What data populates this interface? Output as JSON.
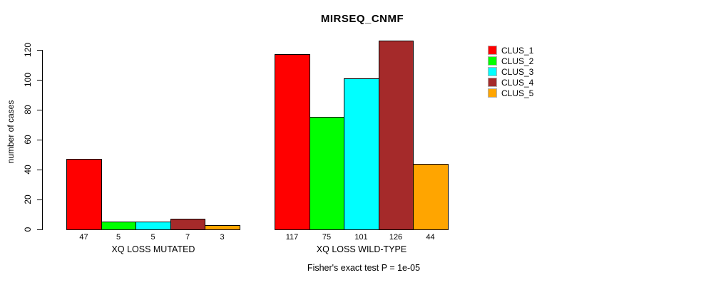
{
  "title": "MIRSEQ_CNMF",
  "footer": "Fisher's exact test P = 1e-05",
  "chart_data": {
    "type": "bar",
    "title": "MIRSEQ_CNMF",
    "ylabel": "number of cases",
    "xlabel": "",
    "ylim": [
      0,
      120
    ],
    "yticks": [
      0,
      20,
      40,
      60,
      80,
      100,
      120
    ],
    "grid": false,
    "legend_position": "right",
    "series_names": [
      "CLUS_1",
      "CLUS_2",
      "CLUS_3",
      "CLUS_4",
      "CLUS_5"
    ],
    "series_colors": [
      "#ff0000",
      "#00ff00",
      "#00ffff",
      "#a52a2a",
      "#ffa500"
    ],
    "groups": [
      {
        "label": "XQ LOSS MUTATED",
        "values": [
          47,
          5,
          5,
          7,
          3
        ]
      },
      {
        "label": "XQ LOSS WILD-TYPE",
        "values": [
          117,
          75,
          101,
          126,
          44
        ]
      }
    ],
    "bar_value_labels_shown": true,
    "annotation": "Fisher's exact test P = 1e-05"
  },
  "legend": {
    "entries": [
      {
        "label": "CLUS_1",
        "color": "#ff0000"
      },
      {
        "label": "CLUS_2",
        "color": "#00ff00"
      },
      {
        "label": "CLUS_3",
        "color": "#00ffff"
      },
      {
        "label": "CLUS_4",
        "color": "#a52a2a"
      },
      {
        "label": "CLUS_5",
        "color": "#ffa500"
      }
    ]
  }
}
